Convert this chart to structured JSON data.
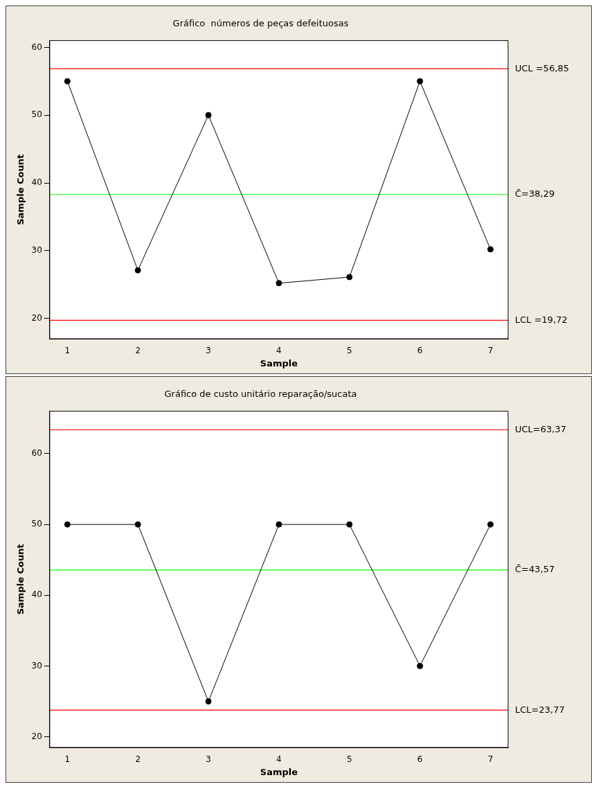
{
  "chart_data": [
    {
      "type": "line",
      "title": "Gráfico  números de peças defeituosas",
      "xlabel": "Sample",
      "ylabel": "Sample Count",
      "x": [
        1,
        2,
        3,
        4,
        5,
        6,
        7
      ],
      "xlim": [
        0.75,
        7.25
      ],
      "xticks": [
        1,
        2,
        3,
        4,
        5,
        6,
        7
      ],
      "ylim": [
        17,
        61
      ],
      "yticks": [
        20,
        30,
        40,
        50,
        60
      ],
      "series": [
        {
          "color": "#000000",
          "values": [
            55,
            27.1,
            50,
            25.2,
            26.1,
            55,
            30.2
          ]
        }
      ],
      "ref_lines": [
        {
          "axis": "y",
          "value": 56.85,
          "label": "UCL =56,85",
          "color": "#ff0000"
        },
        {
          "axis": "y",
          "value": 38.29,
          "label": "C̄=38,29",
          "color": "#00ff00"
        },
        {
          "axis": "y",
          "value": 19.72,
          "label": "LCL =19,72",
          "color": "#ff0000"
        }
      ],
      "grid": false,
      "legend": false,
      "marker": "circle",
      "line_style": "solid"
    },
    {
      "type": "line",
      "title": "Gráfico de custo unitário reparação/sucata",
      "xlabel": "Sample",
      "ylabel": "Sample Count",
      "x": [
        1,
        2,
        3,
        4,
        5,
        6,
        7
      ],
      "xlim": [
        0.75,
        7.25
      ],
      "xticks": [
        1,
        2,
        3,
        4,
        5,
        6,
        7
      ],
      "ylim": [
        18.5,
        66
      ],
      "yticks": [
        20,
        30,
        40,
        50,
        60
      ],
      "series": [
        {
          "color": "#000000",
          "values": [
            50,
            50,
            25,
            50,
            50,
            30,
            50
          ]
        }
      ],
      "ref_lines": [
        {
          "axis": "y",
          "value": 63.37,
          "label": "UCL=63,37",
          "color": "#ff0000"
        },
        {
          "axis": "y",
          "value": 43.57,
          "label": "C̄=43,57",
          "color": "#00ff00"
        },
        {
          "axis": "y",
          "value": 23.77,
          "label": "LCL=23,77",
          "color": "#ff0000"
        }
      ],
      "grid": false,
      "legend": false,
      "marker": "circle",
      "line_style": "solid"
    }
  ]
}
